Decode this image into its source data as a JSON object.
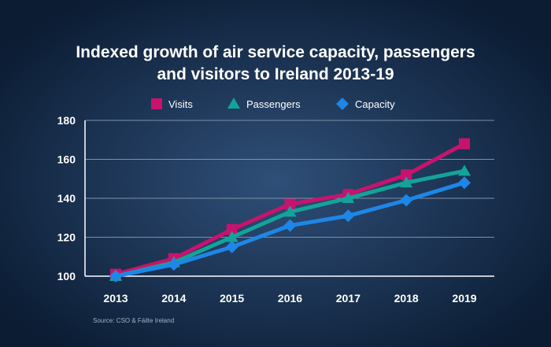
{
  "colors": {
    "background_edge": "#0b1c33",
    "background_center": "#2f4f78",
    "title_text": "#ffffff",
    "tick_text": "#ffffff",
    "source_text": "#9fb2c8",
    "gridline": "#7d90a8",
    "axis_line": "#ffffff"
  },
  "chart_data": {
    "type": "line",
    "title": "Indexed growth of air service capacity, passengers and visitors to Ireland 2013-19",
    "title_lines": [
      "Indexed growth of air service capacity, passengers",
      "and visitors to Ireland 2013-19"
    ],
    "xlabel": "",
    "ylabel": "",
    "categories": [
      "2013",
      "2014",
      "2015",
      "2016",
      "2017",
      "2018",
      "2019"
    ],
    "ylim": [
      100,
      180
    ],
    "yticks": [
      100,
      120,
      140,
      160,
      180
    ],
    "grid": true,
    "legend_position": "top-center",
    "source": "Source: CSO & Fáilte Ireland",
    "series": [
      {
        "name": "Visits",
        "color": "#c8136e",
        "marker": "square",
        "values": [
          101,
          109,
          124,
          137,
          142,
          152,
          168
        ]
      },
      {
        "name": "Passengers",
        "color": "#14a39a",
        "marker": "triangle",
        "values": [
          100,
          107,
          120,
          133,
          140,
          148,
          154
        ]
      },
      {
        "name": "Capacity",
        "color": "#1e86e6",
        "marker": "diamond",
        "values": [
          100,
          106,
          115,
          126,
          131,
          139,
          148
        ]
      }
    ]
  }
}
